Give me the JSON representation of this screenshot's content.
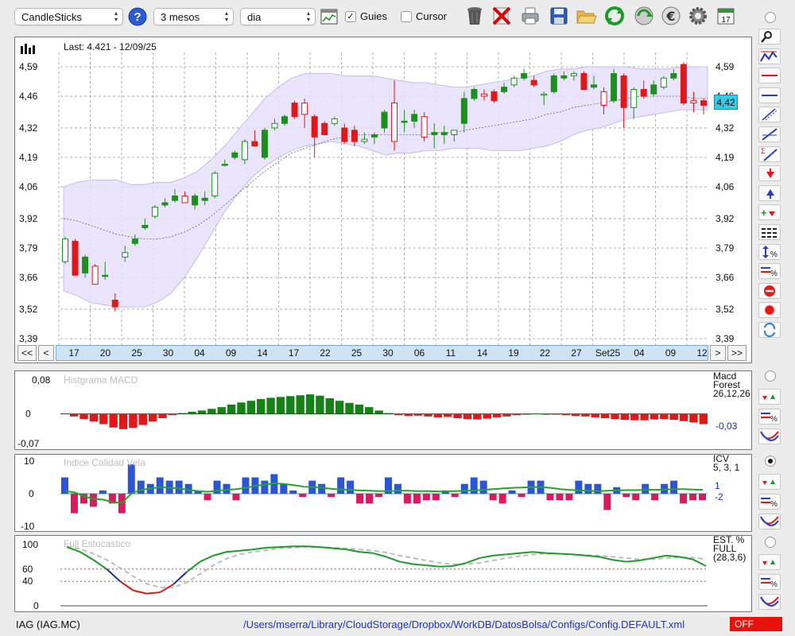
{
  "toolbar": {
    "chart_type": "CandleSticks",
    "period": "3 mesos",
    "interval": "dia",
    "guides_label": "Guies",
    "guides_checked": true,
    "cursor_label": "Cursor",
    "cursor_checked": false,
    "calendar_day": "17",
    "icons": [
      "help-icon",
      "chart-settings-icon",
      "trash-icon",
      "delete-icon",
      "print-icon",
      "save-icon",
      "open-folder-icon",
      "refresh-icon",
      "update-icon",
      "euro-icon",
      "gear-icon",
      "calendar-icon"
    ]
  },
  "main_chart": {
    "last_label": "Last: 4.421 - 12/09/25",
    "current_price": "4,42",
    "y_ticks": [
      "4,59",
      "4,46",
      "4,32",
      "4,19",
      "4,06",
      "3,92",
      "3,79",
      "3,66",
      "3,52",
      "3,39"
    ],
    "x_ticks": [
      "17",
      "20",
      "25",
      "30",
      "04",
      "09",
      "14",
      "17",
      "22",
      "25",
      "30",
      "06",
      "11",
      "14",
      "19",
      "22",
      "27",
      "Set25",
      "04",
      "09",
      "12"
    ],
    "nav_buttons": {
      "first": "<<",
      "prev": "<",
      "next": ">",
      "last": ">>"
    }
  },
  "macd": {
    "title": "Histgrama MACD",
    "legend": [
      "Macd",
      "Forest",
      "26,12,26"
    ],
    "value": "-0,03",
    "y_ticks": [
      "0,08",
      "0",
      "-0,07"
    ]
  },
  "icv": {
    "title": "Indice Calidad Vela",
    "legend": [
      "ICV",
      "5, 3, 1"
    ],
    "value_1": "1",
    "value_2": "-2",
    "y_ticks": [
      "10",
      "0",
      "-10"
    ]
  },
  "stoch": {
    "title": "Full Estocastico",
    "legend": [
      "EST. %",
      "FULL",
      "(28,3,6)"
    ],
    "y_ticks": [
      "100",
      "60",
      "40",
      "0"
    ]
  },
  "footer": {
    "ticker": "IAG (IAG.MC)",
    "path": "/Users/mserra/Library/CloudStorage/Dropbox/WorkDB/DatosBolsa/Configs/Config.DEFAULT.xml",
    "status": "OFF"
  },
  "colors": {
    "up_candle": "#1e8f1e",
    "down_candle": "#e01818",
    "band_fill": "#e6e0fb",
    "macd_pos": "#148214",
    "macd_neg": "#e01818",
    "icv_pos": "#2b55d6",
    "icv_neg": "#d81b60",
    "status_bg": "#e8120c"
  },
  "chart_data": [
    {
      "type": "candlestick",
      "title": "",
      "ylim": [
        3.39,
        4.59
      ],
      "y_ticks": [
        4.59,
        4.46,
        4.32,
        4.19,
        4.06,
        3.92,
        3.79,
        3.66,
        3.52,
        3.39
      ],
      "x_tick_labels": [
        "17",
        "20",
        "25",
        "30",
        "04",
        "09",
        "14",
        "17",
        "22",
        "25",
        "30",
        "06",
        "11",
        "14",
        "19",
        "22",
        "27",
        "Set25",
        "04",
        "09",
        "12"
      ],
      "last": 4.421,
      "candles": [
        {
          "o": 3.73,
          "h": 3.84,
          "l": 3.72,
          "c": 3.83
        },
        {
          "o": 3.82,
          "h": 3.83,
          "l": 3.67,
          "c": 3.67
        },
        {
          "o": 3.68,
          "h": 3.76,
          "l": 3.66,
          "c": 3.75
        },
        {
          "o": 3.71,
          "h": 3.72,
          "l": 3.63,
          "c": 3.63
        },
        {
          "o": 3.67,
          "h": 3.73,
          "l": 3.65,
          "c": 3.67
        },
        {
          "o": 3.56,
          "h": 3.59,
          "l": 3.51,
          "c": 3.53
        },
        {
          "o": 3.75,
          "h": 3.8,
          "l": 3.73,
          "c": 3.77
        },
        {
          "o": 3.81,
          "h": 3.85,
          "l": 3.8,
          "c": 3.83
        },
        {
          "o": 3.88,
          "h": 3.92,
          "l": 3.87,
          "c": 3.89
        },
        {
          "o": 3.93,
          "h": 3.98,
          "l": 3.92,
          "c": 3.97
        },
        {
          "o": 3.98,
          "h": 4.01,
          "l": 3.97,
          "c": 3.99
        },
        {
          "o": 4.0,
          "h": 4.05,
          "l": 3.99,
          "c": 4.02
        },
        {
          "o": 4.02,
          "h": 4.04,
          "l": 3.99,
          "c": 3.99
        },
        {
          "o": 3.98,
          "h": 4.03,
          "l": 3.96,
          "c": 4.02
        },
        {
          "o": 4.0,
          "h": 4.04,
          "l": 3.98,
          "c": 4.01
        },
        {
          "o": 4.02,
          "h": 4.13,
          "l": 4.01,
          "c": 4.12
        },
        {
          "o": 4.16,
          "h": 4.18,
          "l": 4.15,
          "c": 4.16
        },
        {
          "o": 4.19,
          "h": 4.22,
          "l": 4.18,
          "c": 4.21
        },
        {
          "o": 4.18,
          "h": 4.27,
          "l": 4.16,
          "c": 4.26
        },
        {
          "o": 4.26,
          "h": 4.31,
          "l": 4.24,
          "c": 4.24
        },
        {
          "o": 4.19,
          "h": 4.32,
          "l": 4.18,
          "c": 4.31
        },
        {
          "o": 4.32,
          "h": 4.36,
          "l": 4.31,
          "c": 4.34
        },
        {
          "o": 4.34,
          "h": 4.38,
          "l": 4.33,
          "c": 4.37
        },
        {
          "o": 4.43,
          "h": 4.44,
          "l": 4.36,
          "c": 4.37
        },
        {
          "o": 4.43,
          "h": 4.45,
          "l": 4.32,
          "c": 4.38
        },
        {
          "o": 4.37,
          "h": 4.38,
          "l": 4.19,
          "c": 4.28
        },
        {
          "o": 4.34,
          "h": 4.35,
          "l": 4.29,
          "c": 4.29
        },
        {
          "o": 4.34,
          "h": 4.37,
          "l": 4.33,
          "c": 4.36
        },
        {
          "o": 4.32,
          "h": 4.34,
          "l": 4.25,
          "c": 4.26
        },
        {
          "o": 4.31,
          "h": 4.33,
          "l": 4.24,
          "c": 4.26
        },
        {
          "o": 4.26,
          "h": 4.3,
          "l": 4.25,
          "c": 4.27
        },
        {
          "o": 4.28,
          "h": 4.3,
          "l": 4.25,
          "c": 4.29
        },
        {
          "o": 4.32,
          "h": 4.4,
          "l": 4.3,
          "c": 4.39
        },
        {
          "o": 4.43,
          "h": 4.53,
          "l": 4.22,
          "c": 4.26
        },
        {
          "o": 4.35,
          "h": 4.4,
          "l": 4.3,
          "c": 4.35
        },
        {
          "o": 4.35,
          "h": 4.4,
          "l": 4.32,
          "c": 4.38
        },
        {
          "o": 4.37,
          "h": 4.39,
          "l": 4.26,
          "c": 4.28
        },
        {
          "o": 4.29,
          "h": 4.34,
          "l": 4.23,
          "c": 4.3
        },
        {
          "o": 4.29,
          "h": 4.33,
          "l": 4.25,
          "c": 4.3
        },
        {
          "o": 4.29,
          "h": 4.31,
          "l": 4.26,
          "c": 4.31
        },
        {
          "o": 4.34,
          "h": 4.48,
          "l": 4.3,
          "c": 4.45
        },
        {
          "o": 4.45,
          "h": 4.5,
          "l": 4.44,
          "c": 4.49
        },
        {
          "o": 4.47,
          "h": 4.49,
          "l": 4.44,
          "c": 4.46
        },
        {
          "o": 4.48,
          "h": 4.49,
          "l": 4.43,
          "c": 4.44
        },
        {
          "o": 4.48,
          "h": 4.52,
          "l": 4.47,
          "c": 4.5
        },
        {
          "o": 4.51,
          "h": 4.55,
          "l": 4.5,
          "c": 4.54
        },
        {
          "o": 4.54,
          "h": 4.58,
          "l": 4.53,
          "c": 4.56
        },
        {
          "o": 4.53,
          "h": 4.55,
          "l": 4.5,
          "c": 4.51
        },
        {
          "o": 4.47,
          "h": 4.48,
          "l": 4.42,
          "c": 4.47
        },
        {
          "o": 4.48,
          "h": 4.56,
          "l": 4.47,
          "c": 4.55
        },
        {
          "o": 4.54,
          "h": 4.57,
          "l": 4.53,
          "c": 4.55
        },
        {
          "o": 4.55,
          "h": 4.57,
          "l": 4.53,
          "c": 4.56
        },
        {
          "o": 4.56,
          "h": 4.57,
          "l": 4.49,
          "c": 4.49
        },
        {
          "o": 4.5,
          "h": 4.55,
          "l": 4.49,
          "c": 4.51
        },
        {
          "o": 4.48,
          "h": 4.5,
          "l": 4.38,
          "c": 4.42
        },
        {
          "o": 4.44,
          "h": 4.58,
          "l": 4.43,
          "c": 4.56
        },
        {
          "o": 4.55,
          "h": 4.56,
          "l": 4.32,
          "c": 4.41
        },
        {
          "o": 4.41,
          "h": 4.5,
          "l": 4.36,
          "c": 4.49
        },
        {
          "o": 4.49,
          "h": 4.53,
          "l": 4.45,
          "c": 4.46
        },
        {
          "o": 4.47,
          "h": 4.53,
          "l": 4.46,
          "c": 4.51
        },
        {
          "o": 4.5,
          "h": 4.55,
          "l": 4.49,
          "c": 4.54
        },
        {
          "o": 4.54,
          "h": 4.58,
          "l": 4.53,
          "c": 4.56
        },
        {
          "o": 4.6,
          "h": 4.61,
          "l": 4.42,
          "c": 4.43
        },
        {
          "o": 4.44,
          "h": 4.48,
          "l": 4.39,
          "c": 4.43
        },
        {
          "o": 4.44,
          "h": 4.45,
          "l": 4.38,
          "c": 4.42
        }
      ],
      "band_upper": [
        4.06,
        4.08,
        4.09,
        4.09,
        4.09,
        4.07,
        4.07,
        4.08,
        4.08,
        4.1,
        4.13,
        4.18,
        4.24,
        4.31,
        4.38,
        4.45,
        4.5,
        4.54,
        4.56,
        4.56,
        4.56,
        4.55,
        4.55,
        4.55,
        4.54,
        4.53,
        4.52,
        4.52,
        4.51,
        4.5,
        4.5,
        4.51,
        4.52,
        4.53,
        4.54,
        4.55,
        4.57,
        4.58,
        4.58,
        4.59,
        4.59,
        4.59,
        4.59,
        4.58,
        4.58,
        4.58,
        4.59,
        4.59,
        4.59
      ],
      "band_lower": [
        3.6,
        3.58,
        3.55,
        3.54,
        3.53,
        3.53,
        3.53,
        3.55,
        3.59,
        3.66,
        3.75,
        3.85,
        3.95,
        4.03,
        4.1,
        4.15,
        4.19,
        4.22,
        4.24,
        4.25,
        4.26,
        4.25,
        4.24,
        4.22,
        4.2,
        4.21,
        4.21,
        4.22,
        4.22,
        4.23,
        4.23,
        4.23,
        4.22,
        4.22,
        4.22,
        4.23,
        4.24,
        4.26,
        4.29,
        4.31,
        4.32,
        4.34,
        4.36,
        4.37,
        4.38,
        4.39,
        4.4,
        4.4,
        4.4
      ],
      "ma": [
        3.92,
        3.91,
        3.89,
        3.87,
        3.85,
        3.84,
        3.83,
        3.83,
        3.84,
        3.86,
        3.89,
        3.93,
        3.98,
        4.03,
        4.08,
        4.13,
        4.17,
        4.21,
        4.23,
        4.25,
        4.27,
        4.28,
        4.29,
        4.29,
        4.29,
        4.29,
        4.29,
        4.29,
        4.3,
        4.3,
        4.31,
        4.32,
        4.33,
        4.34,
        4.35,
        4.36,
        4.38,
        4.39,
        4.41,
        4.42,
        4.43,
        4.44,
        4.45,
        4.46,
        4.46,
        4.46,
        4.46,
        4.45,
        4.45
      ]
    },
    {
      "type": "bar",
      "title": "Histgrama MACD",
      "ylim": [
        -0.07,
        0.08
      ],
      "values": [
        -0.006,
        -0.012,
        -0.018,
        -0.024,
        -0.032,
        -0.036,
        -0.033,
        -0.026,
        -0.018,
        -0.01,
        -0.003,
        0.002,
        0.005,
        0.008,
        0.012,
        0.016,
        0.022,
        0.027,
        0.031,
        0.035,
        0.038,
        0.04,
        0.042,
        0.044,
        0.046,
        0.043,
        0.037,
        0.031,
        0.026,
        0.022,
        0.016,
        0.008,
        0.002,
        -0.003,
        -0.005,
        -0.004,
        -0.006,
        -0.008,
        -0.007,
        -0.01,
        -0.012,
        -0.013,
        -0.011,
        -0.008,
        -0.006,
        -0.003,
        0,
        0.001,
        0,
        -0.001,
        -0.003,
        -0.005,
        -0.006,
        -0.008,
        -0.01,
        -0.012,
        -0.014,
        -0.015,
        -0.015,
        -0.013,
        -0.012,
        -0.014,
        -0.017,
        -0.02,
        -0.024
      ],
      "last": -0.03
    },
    {
      "type": "bar",
      "title": "Indice Calidad Vela",
      "ylim": [
        -10,
        10
      ],
      "values": [
        5,
        -6,
        -3,
        -4,
        1,
        -3,
        -6,
        9,
        4,
        3,
        5,
        4,
        4,
        3,
        1,
        -2,
        4,
        3,
        -2,
        5,
        5,
        4,
        6,
        3,
        1,
        -1,
        4,
        3,
        -1,
        5,
        4,
        -3,
        -3,
        -1,
        5,
        3,
        -3,
        -3,
        -2,
        -2,
        1,
        -1,
        3,
        5,
        4,
        -2,
        -3,
        1,
        -1,
        4,
        4,
        -2,
        -2,
        -2,
        4,
        3,
        3,
        -5,
        2,
        -1,
        -2,
        3,
        -2,
        3,
        4,
        -3,
        -2,
        -2
      ],
      "signal": [
        0.8,
        0.4,
        -0.8,
        -1.6,
        -1.8,
        -2.6,
        -2.8,
        0.2,
        1.2,
        1.6,
        2.0,
        1.8,
        1.6,
        1.2,
        0.8,
        0.6,
        0.9,
        1.2,
        1.4,
        1.8,
        2.4,
        2.8,
        3.2,
        3.0,
        2.6,
        2.2,
        2.0,
        1.8,
        1.5,
        1.3,
        1.2,
        1.0,
        0.9,
        0.8,
        0.8,
        0.9,
        0.9,
        0.8,
        0.8,
        0.7,
        0.7,
        0.8,
        0.9,
        1.0,
        1.2,
        1.4,
        1.6,
        1.8,
        1.9,
        2.0,
        2.0,
        1.8,
        1.4,
        1.2,
        1.0,
        0.9,
        0.8,
        0.9,
        1.0,
        1.1,
        1.1,
        1.2,
        1.2,
        1.3,
        1.4,
        1.4,
        1.3,
        1.2
      ],
      "last": [
        1,
        -2
      ]
    },
    {
      "type": "line",
      "title": "Full Estocastico",
      "ylim": [
        0,
        100
      ],
      "y_ticks": [
        100,
        60,
        40,
        0
      ],
      "series": [
        {
          "values": [
            96,
            88,
            75,
            60,
            40,
            25,
            20,
            22,
            35,
            55,
            72,
            82,
            88,
            90,
            92,
            95,
            96,
            97,
            97,
            96,
            94,
            92,
            88,
            86,
            80,
            72,
            68,
            66,
            64,
            65,
            70,
            78,
            82,
            84,
            86,
            88,
            86,
            85,
            84,
            82,
            80,
            75,
            72,
            74,
            78,
            82,
            80,
            76,
            65
          ]
        },
        {
          "values": [
            97,
            93,
            85,
            75,
            62,
            48,
            36,
            30,
            30,
            38,
            52,
            66,
            77,
            84,
            88,
            91,
            94,
            95,
            96,
            96,
            95,
            94,
            92,
            90,
            87,
            82,
            78,
            74,
            70,
            68,
            68,
            70,
            74,
            78,
            81,
            84,
            85,
            85,
            84,
            83,
            82,
            80,
            78,
            76,
            76,
            78,
            79,
            79,
            76
          ]
        }
      ]
    }
  ]
}
